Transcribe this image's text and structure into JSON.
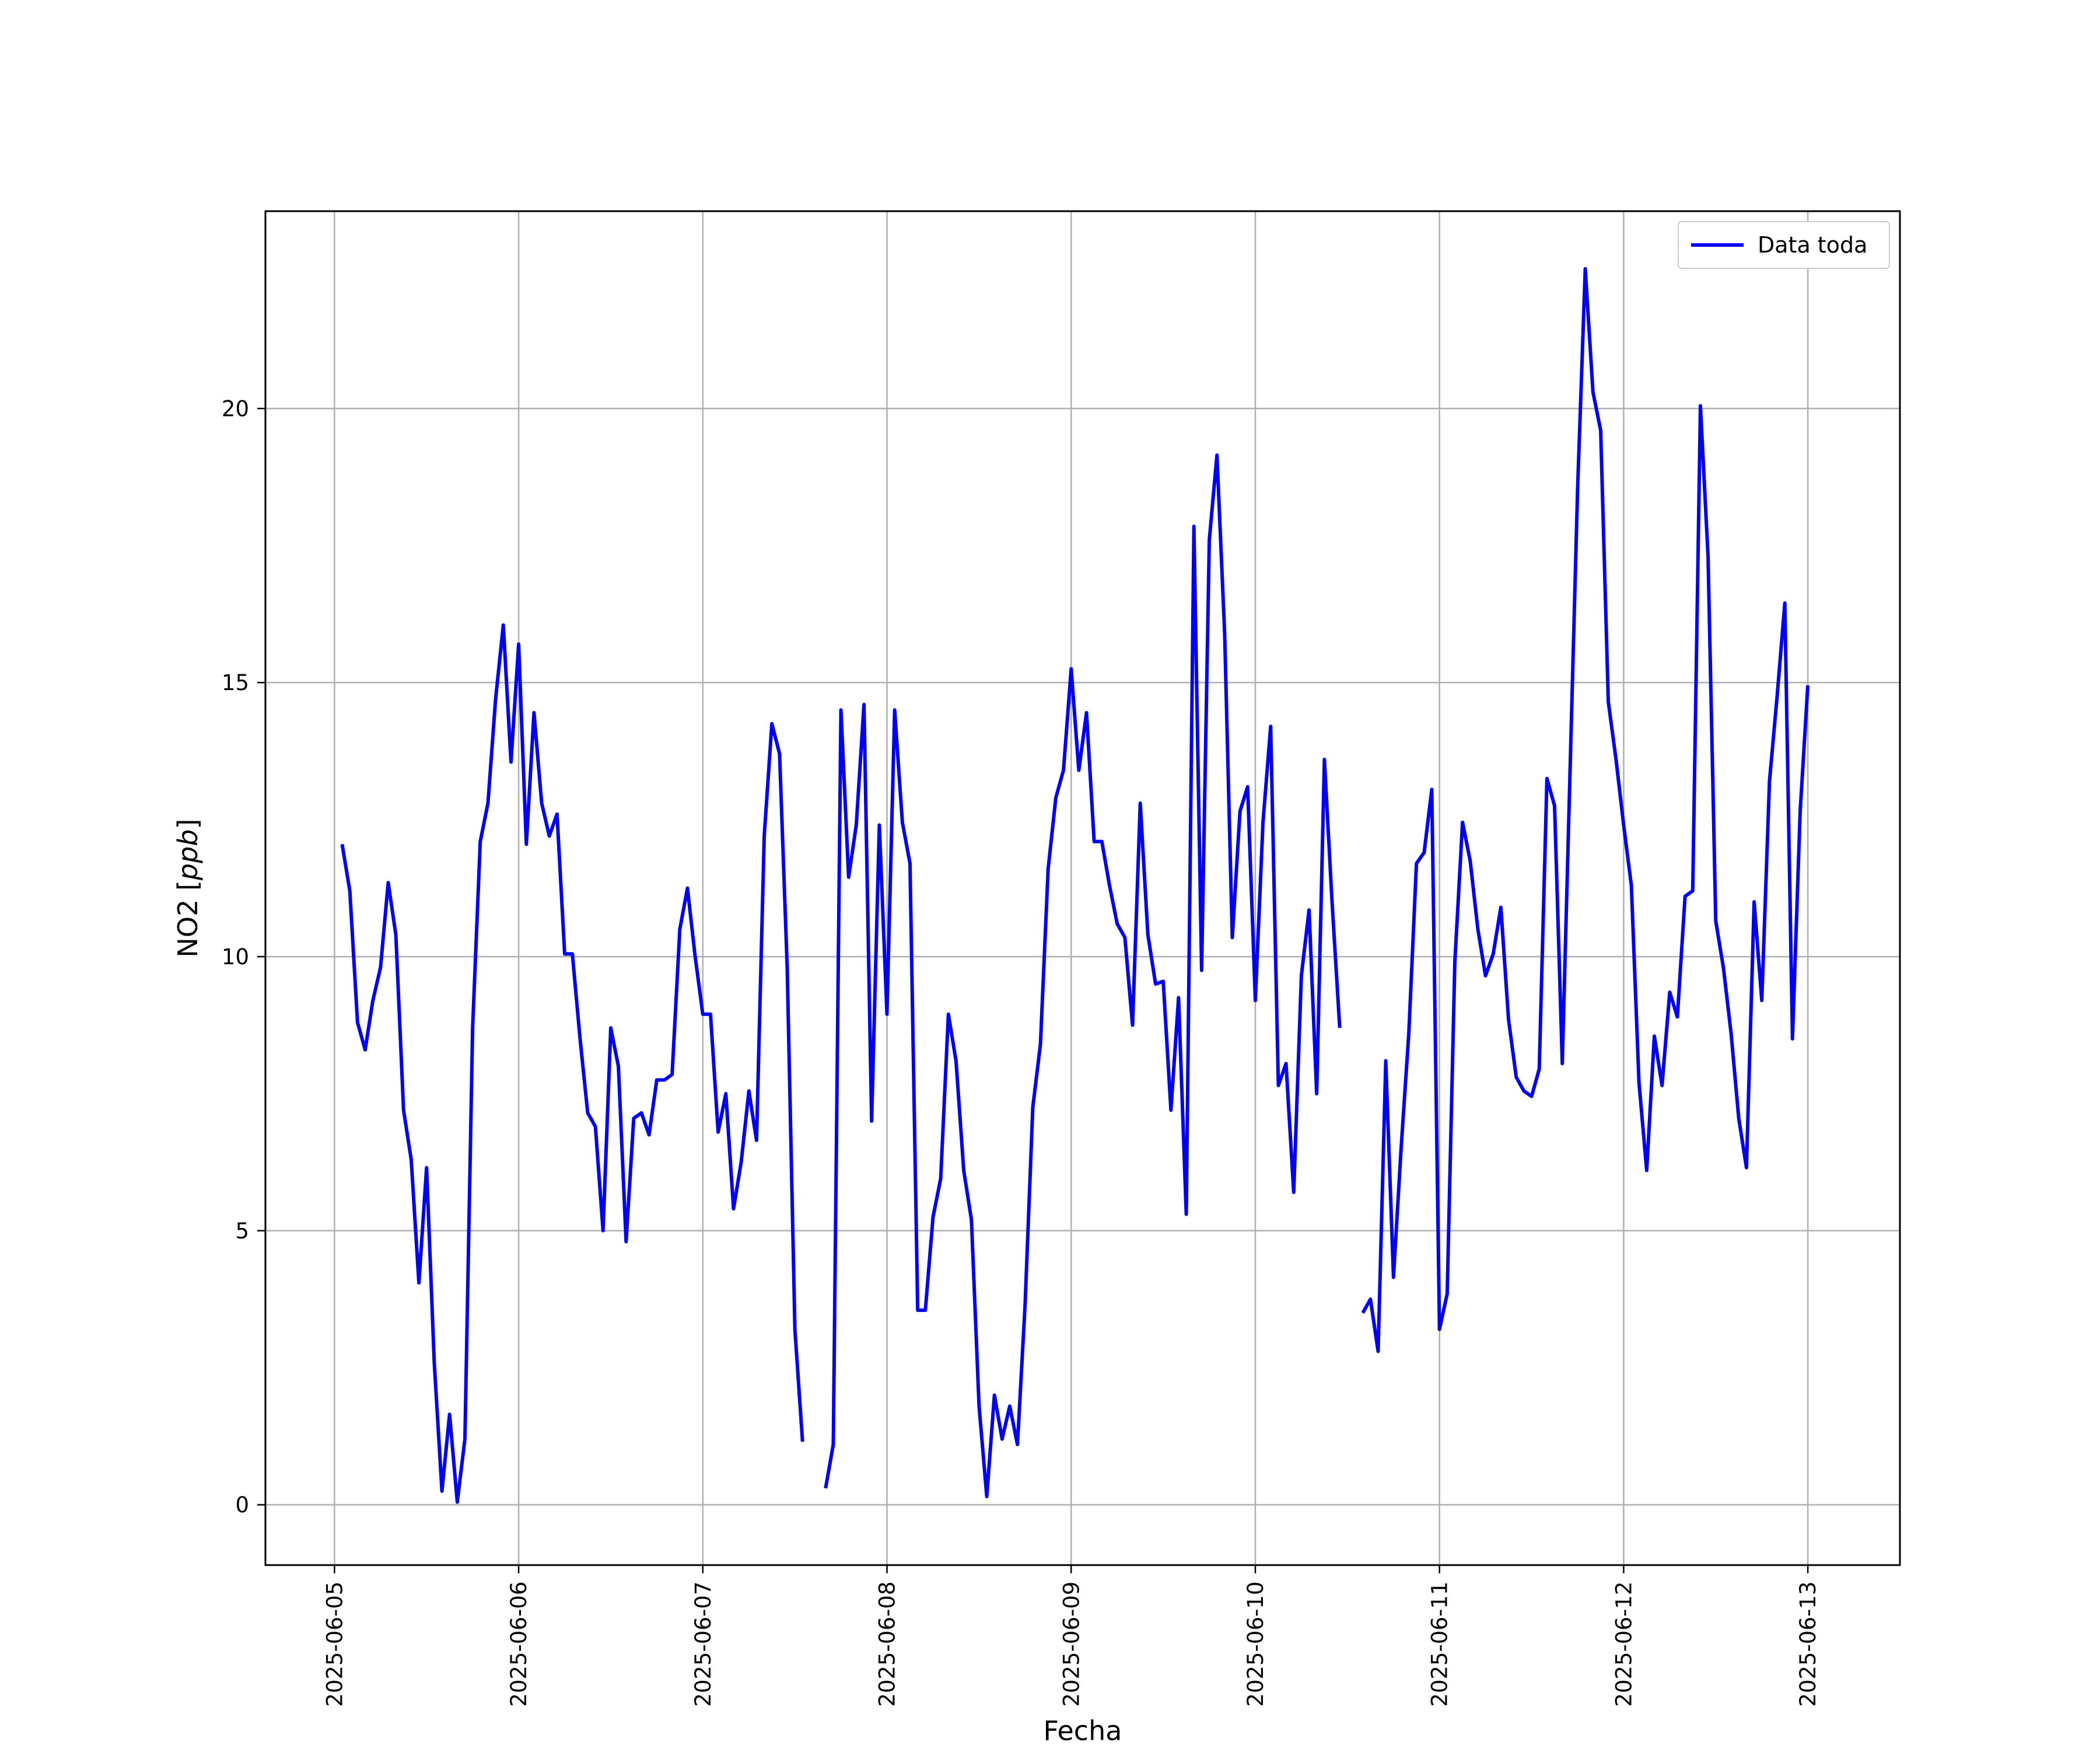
{
  "chart_data": {
    "type": "line",
    "title": "",
    "xlabel": "Fecha",
    "ylabel": "NO2 [ppb]",
    "xlim": [
      "2025-06-04 15:00",
      "2025-06-13 12:00"
    ],
    "ylim": [
      -1.1,
      23.6
    ],
    "grid": true,
    "legend_position": "top-right",
    "x_ticks": [
      "2025-06-05",
      "2025-06-06",
      "2025-06-07",
      "2025-06-08",
      "2025-06-09",
      "2025-06-10",
      "2025-06-11",
      "2025-06-12",
      "2025-06-13"
    ],
    "y_ticks": [
      0,
      5,
      10,
      15,
      20
    ],
    "colors": {
      "series": "#0000ff",
      "grid": "#b0b0b0",
      "frame": "#000000"
    },
    "series": [
      {
        "name": "Data toda",
        "x": [
          "2025-06-05 01:00",
          "2025-06-05 02:00",
          "2025-06-05 03:00",
          "2025-06-05 04:00",
          "2025-06-05 05:00",
          "2025-06-05 06:00",
          "2025-06-05 07:00",
          "2025-06-05 08:00",
          "2025-06-05 09:00",
          "2025-06-05 10:00",
          "2025-06-05 11:00",
          "2025-06-05 12:00",
          "2025-06-05 13:00",
          "2025-06-05 14:00",
          "2025-06-05 15:00",
          "2025-06-05 16:00",
          "2025-06-05 17:00",
          "2025-06-05 18:00",
          "2025-06-05 19:00",
          "2025-06-05 20:00",
          "2025-06-05 21:00",
          "2025-06-05 22:00",
          "2025-06-05 23:00",
          "2025-06-06 00:00",
          "2025-06-06 01:00",
          "2025-06-06 02:00",
          "2025-06-06 03:00",
          "2025-06-06 04:00",
          "2025-06-06 05:00",
          "2025-06-06 06:00",
          "2025-06-06 07:00",
          "2025-06-06 08:00",
          "2025-06-06 09:00",
          "2025-06-06 10:00",
          "2025-06-06 11:00",
          "2025-06-06 12:00",
          "2025-06-06 13:00",
          "2025-06-06 14:00",
          "2025-06-06 15:00",
          "2025-06-06 16:00",
          "2025-06-06 17:00",
          "2025-06-06 18:00",
          "2025-06-06 19:00",
          "2025-06-06 20:00",
          "2025-06-06 21:00",
          "2025-06-06 22:00",
          "2025-06-06 23:00",
          "2025-06-07 00:00",
          "2025-06-07 01:00",
          "2025-06-07 02:00",
          "2025-06-07 03:00",
          "2025-06-07 04:00",
          "2025-06-07 05:00",
          "2025-06-07 06:00",
          "2025-06-07 07:00",
          "2025-06-07 08:00",
          "2025-06-07 09:00",
          "2025-06-07 10:00",
          "2025-06-07 11:00",
          "2025-06-07 12:00",
          "2025-06-07 13:00",
          "2025-06-07 14:00",
          "2025-06-07 15:00",
          "2025-06-07 16:00",
          "2025-06-07 17:00",
          "2025-06-07 18:00",
          "2025-06-07 19:00",
          "2025-06-07 20:00",
          "2025-06-07 21:00",
          "2025-06-07 22:00",
          "2025-06-07 23:00",
          "2025-06-08 00:00",
          "2025-06-08 01:00",
          "2025-06-08 02:00",
          "2025-06-08 03:00",
          "2025-06-08 04:00",
          "2025-06-08 05:00",
          "2025-06-08 06:00",
          "2025-06-08 07:00",
          "2025-06-08 08:00",
          "2025-06-08 09:00",
          "2025-06-08 10:00",
          "2025-06-08 11:00",
          "2025-06-08 12:00",
          "2025-06-08 13:00",
          "2025-06-08 14:00",
          "2025-06-08 15:00",
          "2025-06-08 16:00",
          "2025-06-08 17:00",
          "2025-06-08 18:00",
          "2025-06-08 19:00",
          "2025-06-08 20:00",
          "2025-06-08 21:00",
          "2025-06-08 22:00",
          "2025-06-08 23:00",
          "2025-06-09 00:00",
          "2025-06-09 01:00",
          "2025-06-09 02:00",
          "2025-06-09 03:00",
          "2025-06-09 04:00",
          "2025-06-09 05:00",
          "2025-06-09 06:00",
          "2025-06-09 07:00",
          "2025-06-09 08:00",
          "2025-06-09 09:00",
          "2025-06-09 10:00",
          "2025-06-09 11:00",
          "2025-06-09 12:00",
          "2025-06-09 13:00",
          "2025-06-09 14:00",
          "2025-06-09 15:00",
          "2025-06-09 16:00",
          "2025-06-09 17:00",
          "2025-06-09 18:00",
          "2025-06-09 19:00",
          "2025-06-09 20:00",
          "2025-06-09 21:00",
          "2025-06-09 22:00",
          "2025-06-09 23:00",
          "2025-06-10 00:00",
          "2025-06-10 01:00",
          "2025-06-10 02:00",
          "2025-06-10 03:00",
          "2025-06-10 04:00",
          "2025-06-10 05:00",
          "2025-06-10 06:00",
          "2025-06-10 07:00",
          "2025-06-10 08:00",
          "2025-06-10 09:00",
          "2025-06-10 10:00",
          "2025-06-10 11:00",
          "2025-06-10 12:00",
          "2025-06-10 13:00",
          "2025-06-10 14:00",
          "2025-06-10 15:00",
          "2025-06-10 16:00",
          "2025-06-10 17:00",
          "2025-06-10 18:00",
          "2025-06-10 19:00",
          "2025-06-10 20:00",
          "2025-06-10 21:00",
          "2025-06-10 22:00",
          "2025-06-10 23:00",
          "2025-06-11 00:00",
          "2025-06-11 01:00",
          "2025-06-11 02:00",
          "2025-06-11 03:00",
          "2025-06-11 04:00",
          "2025-06-11 05:00",
          "2025-06-11 06:00",
          "2025-06-11 07:00",
          "2025-06-11 08:00",
          "2025-06-11 09:00",
          "2025-06-11 10:00",
          "2025-06-11 11:00",
          "2025-06-11 12:00",
          "2025-06-11 13:00",
          "2025-06-11 14:00",
          "2025-06-11 15:00",
          "2025-06-11 16:00",
          "2025-06-11 17:00",
          "2025-06-11 18:00",
          "2025-06-11 19:00",
          "2025-06-11 20:00",
          "2025-06-11 21:00",
          "2025-06-11 22:00",
          "2025-06-11 23:00",
          "2025-06-12 00:00",
          "2025-06-12 01:00",
          "2025-06-12 02:00",
          "2025-06-12 03:00",
          "2025-06-12 04:00",
          "2025-06-12 05:00",
          "2025-06-12 06:00",
          "2025-06-12 07:00",
          "2025-06-12 08:00",
          "2025-06-12 09:00",
          "2025-06-12 10:00",
          "2025-06-12 11:00",
          "2025-06-12 12:00",
          "2025-06-12 13:00",
          "2025-06-12 14:00",
          "2025-06-12 15:00",
          "2025-06-12 16:00",
          "2025-06-12 17:00",
          "2025-06-12 18:00",
          "2025-06-12 19:00",
          "2025-06-12 20:00",
          "2025-06-12 21:00",
          "2025-06-12 22:00",
          "2025-06-12 23:00",
          "2025-06-13 00:00"
        ],
        "values": [
          12.05,
          11.2,
          8.8,
          8.3,
          9.2,
          9.8,
          11.35,
          10.4,
          7.2,
          6.3,
          4.05,
          6.15,
          2.6,
          0.25,
          1.65,
          0.05,
          1.2,
          8.7,
          12.1,
          12.8,
          14.7,
          16.05,
          13.55,
          15.7,
          12.05,
          14.45,
          12.8,
          12.2,
          12.6,
          10.05,
          10.05,
          8.5,
          7.15,
          6.9,
          5.0,
          8.7,
          8.0,
          4.8,
          7.05,
          7.15,
          6.75,
          7.75,
          7.75,
          7.85,
          10.5,
          11.25,
          10.0,
          8.95,
          8.95,
          6.8,
          7.5,
          5.4,
          6.25,
          7.55,
          6.65,
          12.2,
          14.25,
          13.7,
          9.8,
          3.2,
          1.15,
          null,
          null,
          0.3,
          1.1,
          14.5,
          11.45,
          12.4,
          14.6,
          7.0,
          12.4,
          8.95,
          14.5,
          12.45,
          11.7,
          3.55,
          3.55,
          5.25,
          5.95,
          8.95,
          8.1,
          6.1,
          5.2,
          1.8,
          0.15,
          2.0,
          1.2,
          1.8,
          1.1,
          3.65,
          7.25,
          8.4,
          11.6,
          12.9,
          13.4,
          15.25,
          13.4,
          14.45,
          12.1,
          12.1,
          11.3,
          10.6,
          10.35,
          8.75,
          12.8,
          10.4,
          9.5,
          9.55,
          7.2,
          9.25,
          5.3,
          17.85,
          9.75,
          17.6,
          19.15,
          15.9,
          10.35,
          12.65,
          13.1,
          9.2,
          12.45,
          14.2,
          7.65,
          8.05,
          5.7,
          9.65,
          10.85,
          7.5,
          13.6,
          11.0,
          8.7,
          null,
          null,
          3.5,
          3.75,
          2.8,
          8.1,
          4.15,
          6.5,
          8.6,
          11.7,
          11.9,
          13.05,
          3.2,
          3.85,
          9.9,
          12.45,
          11.75,
          10.5,
          9.65,
          10.05,
          10.9,
          8.85,
          7.8,
          7.55,
          7.45,
          7.95,
          13.25,
          12.75,
          8.05,
          13.3,
          18.55,
          22.55,
          20.3,
          19.6,
          14.65,
          13.6,
          12.4,
          11.3,
          7.7,
          6.1,
          8.55,
          7.65,
          9.35,
          8.9,
          11.1,
          11.2,
          20.05,
          17.3,
          10.65,
          9.8,
          8.6,
          7.05,
          6.15,
          11.0,
          9.2,
          13.2,
          14.75,
          16.45,
          8.5,
          12.65,
          14.95
        ]
      }
    ]
  }
}
